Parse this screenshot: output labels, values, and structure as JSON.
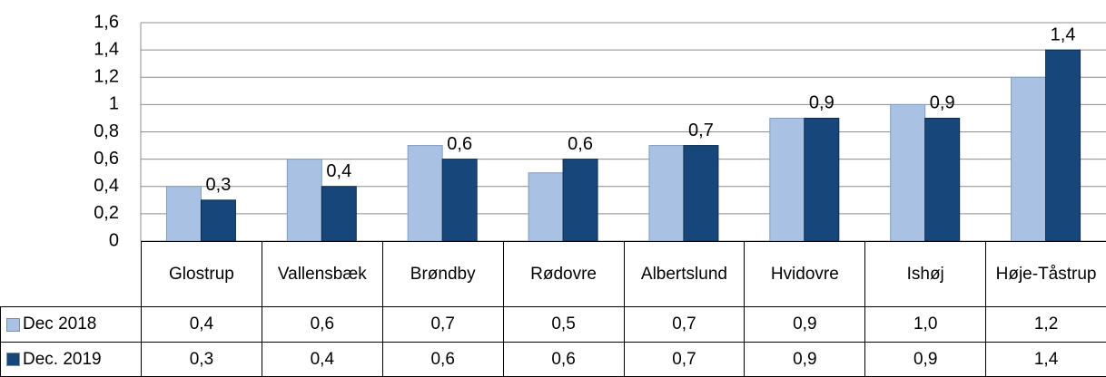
{
  "chart_data": {
    "type": "bar",
    "categories": [
      "Glostrup",
      "Vallensbæk",
      "Brøndby",
      "Rødovre",
      "Albertslund",
      "Hvidovre",
      "Ishøj",
      "Høje-Tåstrup"
    ],
    "series": [
      {
        "name": "Dec 2018",
        "color": "#a9c1e2",
        "values": [
          0.4,
          0.6,
          0.7,
          0.5,
          0.7,
          0.9,
          1.0,
          1.2
        ],
        "value_labels": [
          "0,4",
          "0,6",
          "0,7",
          "0,5",
          "0,7",
          "0,9",
          "1,0",
          "1,2"
        ]
      },
      {
        "name": "Dec. 2019",
        "color": "#17477a",
        "values": [
          0.3,
          0.4,
          0.6,
          0.6,
          0.7,
          0.9,
          0.9,
          1.4
        ],
        "value_labels": [
          "0,3",
          "0,4",
          "0,6",
          "0,6",
          "0,7",
          "0,9",
          "0,9",
          "1,4"
        ]
      }
    ],
    "ylim": [
      0,
      1.6
    ],
    "yticks": [
      0,
      {
        "value": 0.2,
        "label": "0,2"
      },
      {
        "value": 0.4,
        "label": "0,4"
      },
      {
        "value": 0.6,
        "label": "0,6"
      },
      {
        "value": 0.8,
        "label": "0,8"
      },
      {
        "value": 1,
        "label": "1"
      },
      {
        "value": 1.2,
        "label": "1,2"
      },
      {
        "value": 1.4,
        "label": "1,4"
      },
      {
        "value": 1.6,
        "label": "1,6"
      }
    ],
    "grid": true,
    "data_labels_series": [
      1
    ]
  }
}
